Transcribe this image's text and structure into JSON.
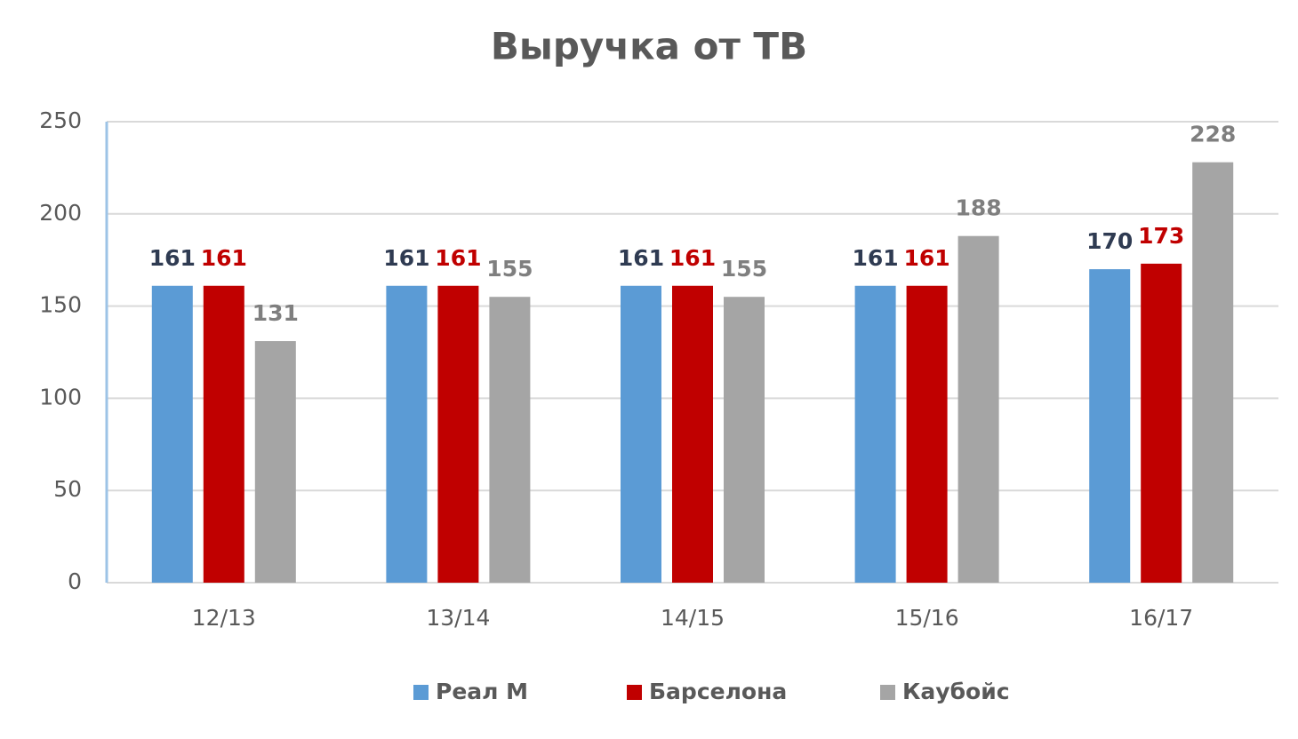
{
  "chart_data": {
    "type": "bar",
    "title": "Выручка от ТВ",
    "categories": [
      "12/13",
      "13/14",
      "14/15",
      "15/16",
      "16/17"
    ],
    "series": [
      {
        "name": "Реал М",
        "color": "#5b9bd5",
        "label_color": "#2f3b52",
        "values": [
          161,
          161,
          161,
          161,
          170
        ]
      },
      {
        "name": "Барселона",
        "color": "#c00000",
        "label_color": "#c00000",
        "values": [
          161,
          161,
          161,
          161,
          173
        ]
      },
      {
        "name": "Каубойс",
        "color": "#a5a5a5",
        "label_color": "#7f7f7f",
        "values": [
          131,
          155,
          155,
          188,
          228
        ]
      }
    ],
    "ylim": [
      0,
      250
    ],
    "yticks": [
      0,
      50,
      100,
      150,
      200,
      250
    ],
    "grid": true,
    "legend": "bottom"
  }
}
